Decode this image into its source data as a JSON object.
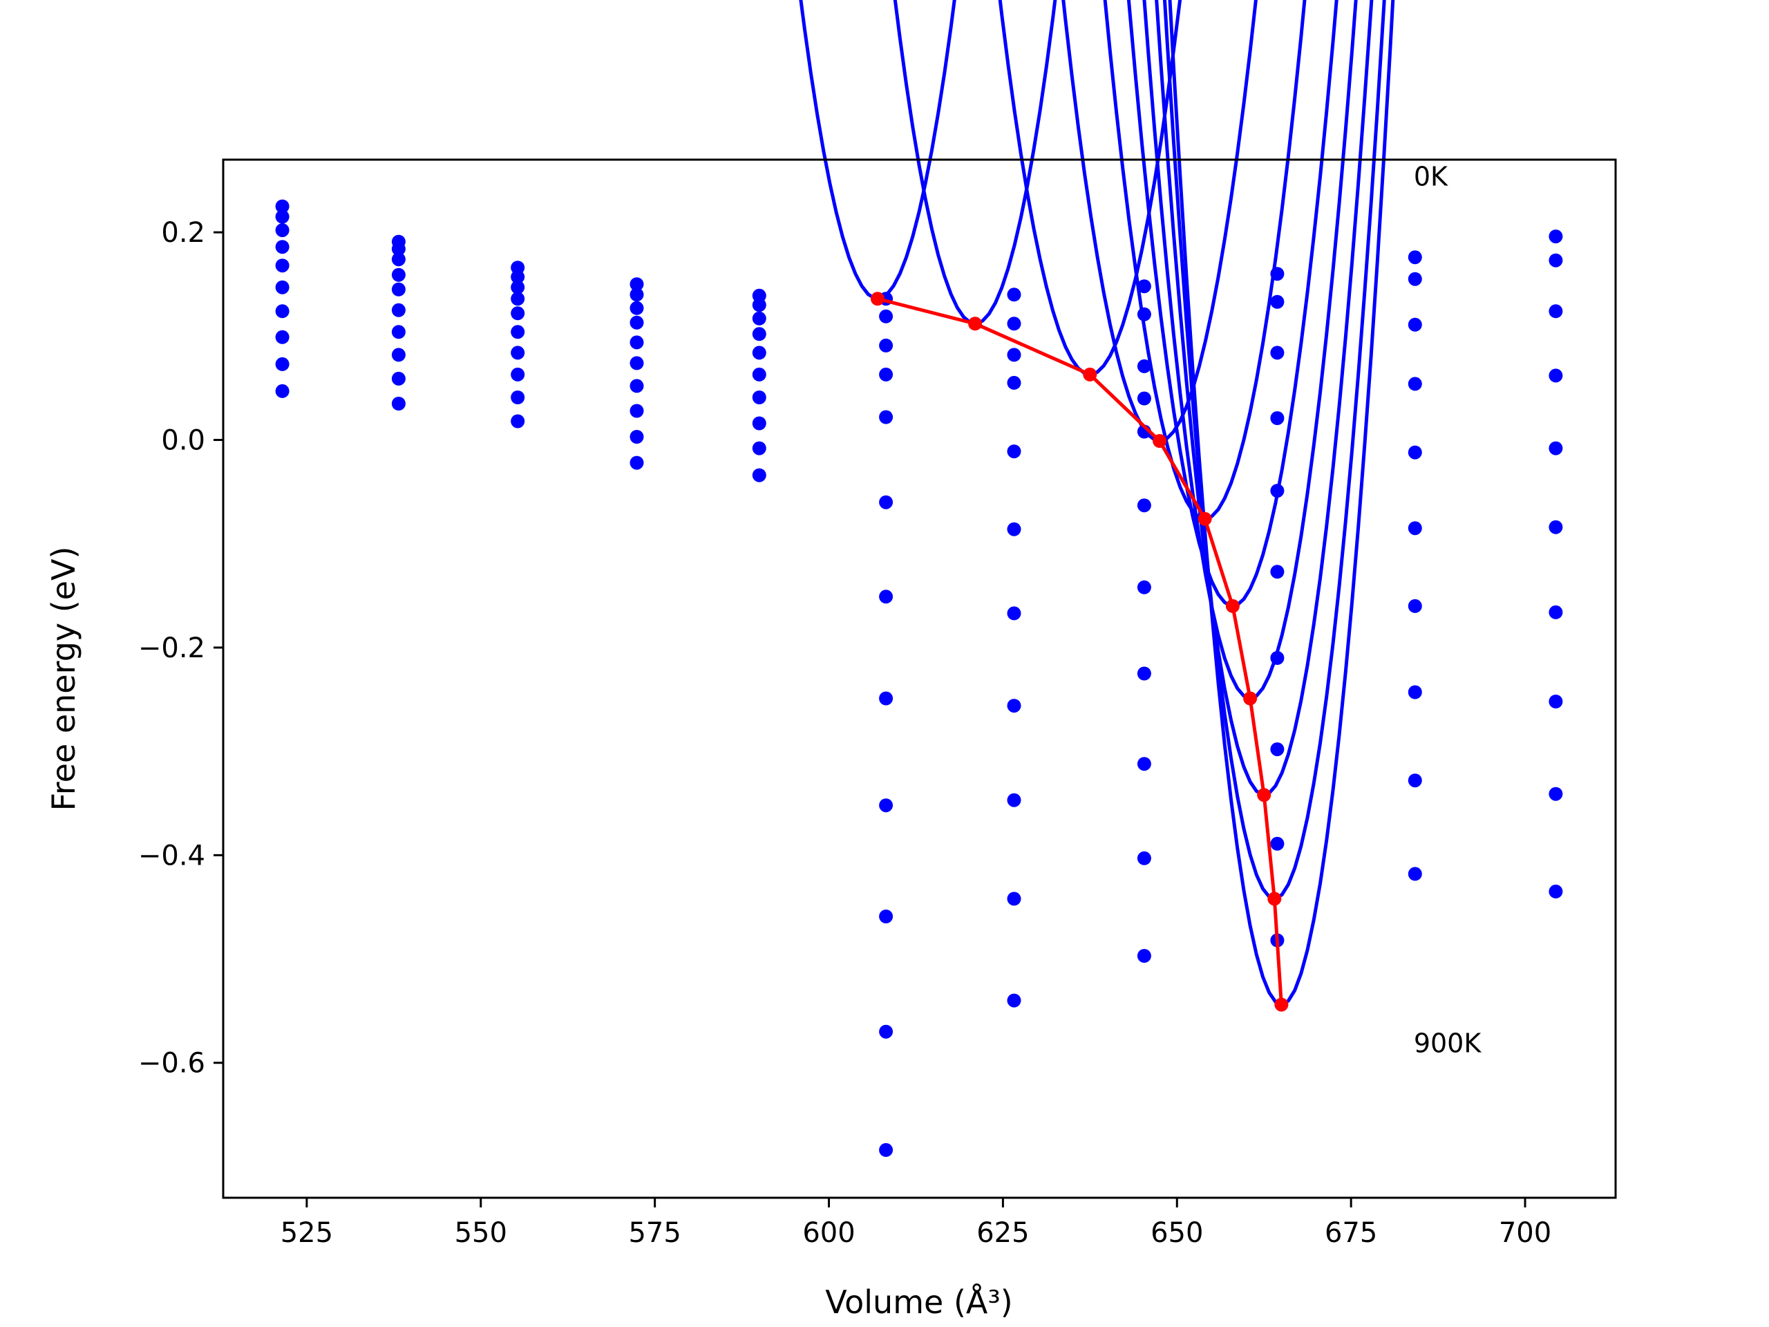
{
  "chart_data": {
    "type": "line",
    "title": "",
    "xlabel": "Volume (Å³)",
    "ylabel": "Free energy (eV)",
    "xlim": [
      513,
      713
    ],
    "ylim": [
      -0.73,
      0.27
    ],
    "xticks": [
      525,
      550,
      575,
      600,
      625,
      650,
      675,
      700
    ],
    "xtick_labels": [
      "525",
      "550",
      "575",
      "600",
      "625",
      "650",
      "675",
      "700"
    ],
    "yticks": [
      -0.6,
      -0.4,
      -0.2,
      0.0,
      0.2
    ],
    "ytick_labels": [
      "−0.6",
      "−0.4",
      "−0.2",
      "0.0",
      "0.2"
    ],
    "grid": false,
    "legend": null,
    "annotations": [
      {
        "text": "0K",
        "x": 684,
        "y": 0.245
      },
      {
        "text": "900K",
        "x": 684,
        "y": -0.59
      }
    ],
    "colors": {
      "fits": "#0000ff",
      "points": "#0000ff",
      "minima": "#ff0000",
      "axes": "#000000"
    },
    "x": [
      521.5,
      538.2,
      555.3,
      572.4,
      590.0,
      608.2,
      626.6,
      645.3,
      664.4,
      684.2,
      704.4
    ],
    "series": [
      {
        "values": [
          0.225,
          0.191,
          0.166,
          0.15,
          0.139,
          0.136,
          0.14,
          0.148,
          0.16,
          0.176,
          0.196
        ]
      },
      {
        "values": [
          0.215,
          0.184,
          0.157,
          0.14,
          0.13,
          0.119,
          0.112,
          0.121,
          0.133,
          0.155,
          0.173
        ]
      },
      {
        "values": [
          0.202,
          0.174,
          0.147,
          0.127,
          0.117,
          0.091,
          0.082,
          0.071,
          0.084,
          0.111,
          0.124
        ]
      },
      {
        "values": [
          0.186,
          0.159,
          0.136,
          0.113,
          0.102,
          0.063,
          0.055,
          0.04,
          0.021,
          0.054,
          0.062
        ]
      },
      {
        "values": [
          0.168,
          0.145,
          0.122,
          0.094,
          0.084,
          0.022,
          -0.011,
          0.008,
          -0.049,
          -0.012,
          -0.008
        ]
      },
      {
        "values": [
          0.147,
          0.125,
          0.104,
          0.074,
          0.063,
          -0.06,
          -0.086,
          -0.063,
          -0.127,
          -0.085,
          -0.084
        ]
      },
      {
        "values": [
          0.124,
          0.104,
          0.084,
          0.052,
          0.041,
          -0.151,
          -0.167,
          -0.142,
          -0.21,
          -0.16,
          -0.166
        ]
      },
      {
        "values": [
          0.099,
          0.082,
          0.063,
          0.028,
          0.016,
          -0.249,
          -0.256,
          -0.225,
          -0.298,
          -0.243,
          -0.252
        ]
      },
      {
        "values": [
          0.073,
          0.059,
          0.041,
          0.003,
          -0.008,
          -0.352,
          -0.347,
          -0.312,
          -0.389,
          -0.328,
          -0.341
        ]
      },
      {
        "values": [
          0.047,
          0.035,
          0.018,
          -0.022,
          -0.034,
          -0.459,
          -0.442,
          -0.403,
          -0.482,
          -0.418,
          -0.435
        ]
      },
      {
        "values": [
          null,
          null,
          null,
          null,
          null,
          -0.57,
          -0.54,
          -0.497,
          null,
          null,
          null
        ]
      },
      {
        "values": [
          null,
          null,
          null,
          null,
          null,
          -0.684,
          null,
          null,
          null,
          null,
          null
        ]
      }
    ],
    "fits": [
      {
        "vmin": 607.0,
        "emin": 0.136,
        "curvature": 2.36e-05
      },
      {
        "vmin": 621.0,
        "emin": 0.112,
        "curvature": 2.36e-05
      },
      {
        "vmin": 637.5,
        "emin": 0.063,
        "curvature": 2.16e-05
      },
      {
        "vmin": 647.5,
        "emin": -0.001,
        "curvature": 2.22e-05
      },
      {
        "vmin": 654.0,
        "emin": -0.076,
        "curvature": 2.43e-05
      },
      {
        "vmin": 658.0,
        "emin": -0.16,
        "curvature": 2.62e-05
      },
      {
        "vmin": 660.5,
        "emin": -0.249,
        "curvature": 2.91e-05
      },
      {
        "vmin": 662.5,
        "emin": -0.342,
        "curvature": 3.21e-05
      },
      {
        "vmin": 664.0,
        "emin": -0.442,
        "curvature": 3.48e-05
      },
      {
        "vmin": 665.0,
        "emin": -0.544,
        "curvature": 3.77e-05
      }
    ],
    "minima": {
      "x": [
        607.0,
        621.0,
        637.5,
        647.5,
        654.0,
        658.0,
        660.5,
        662.5,
        664.0,
        665.0
      ],
      "y": [
        0.136,
        0.112,
        0.063,
        -0.001,
        -0.076,
        -0.16,
        -0.249,
        -0.342,
        -0.442,
        -0.544
      ]
    }
  }
}
